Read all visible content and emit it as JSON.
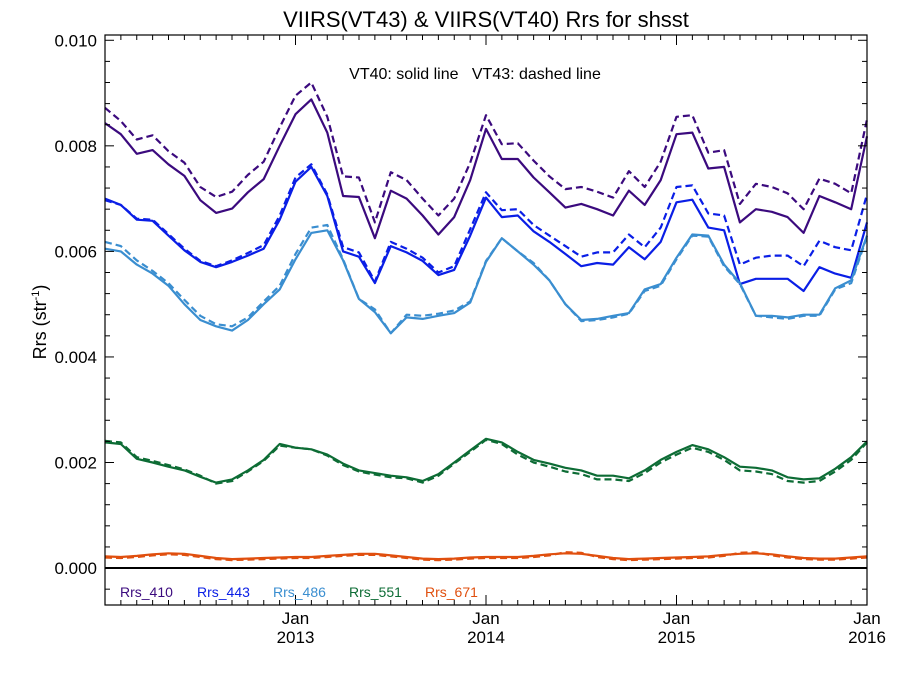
{
  "chart_data": {
    "type": "line",
    "title": "VIIRS(VT43) & VIIRS(VT40)  Rrs for shsst",
    "ylabel_main": "Rrs (str",
    "ylabel_sup": "-1",
    "ylabel_close": ")",
    "annotation": "VT40: solid line   VT43: dashed line",
    "xlim": [
      2012.0,
      2016.0
    ],
    "ylim": [
      -0.0007,
      0.0101
    ],
    "yticks": [
      {
        "value": 0.0,
        "label": "0.000"
      },
      {
        "value": 0.002,
        "label": "0.002"
      },
      {
        "value": 0.004,
        "label": "0.004"
      },
      {
        "value": 0.006,
        "label": "0.006"
      },
      {
        "value": 0.008,
        "label": "0.008"
      },
      {
        "value": 0.01,
        "label": "0.010"
      }
    ],
    "xticks": [
      {
        "value": 2013.0,
        "month": "Jan",
        "year": "2013"
      },
      {
        "value": 2014.0,
        "month": "Jan",
        "year": "2014"
      },
      {
        "value": 2015.0,
        "month": "Jan",
        "year": "2015"
      },
      {
        "value": 2016.0,
        "month": "Jan",
        "year": "2016"
      }
    ],
    "x": [
      2012.0,
      2012.083,
      2012.167,
      2012.25,
      2012.333,
      2012.417,
      2012.5,
      2012.583,
      2012.667,
      2012.75,
      2012.833,
      2012.917,
      2013.0,
      2013.083,
      2013.167,
      2013.25,
      2013.333,
      2013.417,
      2013.5,
      2013.583,
      2013.667,
      2013.75,
      2013.833,
      2013.917,
      2014.0,
      2014.083,
      2014.167,
      2014.25,
      2014.333,
      2014.417,
      2014.5,
      2014.583,
      2014.667,
      2014.75,
      2014.833,
      2014.917,
      2015.0,
      2015.083,
      2015.167,
      2015.25,
      2015.333,
      2015.417,
      2015.5,
      2015.583,
      2015.667,
      2015.75,
      2015.833,
      2015.917,
      2016.0
    ],
    "series": [
      {
        "name": "Rrs_410",
        "color": "#3b0a7e",
        "vt40": [
          0.00843,
          0.00822,
          0.00785,
          0.00792,
          0.00765,
          0.00743,
          0.00697,
          0.00673,
          0.00681,
          0.00712,
          0.00737,
          0.008,
          0.0086,
          0.00888,
          0.00825,
          0.00705,
          0.00703,
          0.00625,
          0.00715,
          0.007,
          0.00668,
          0.00632,
          0.00665,
          0.00735,
          0.00832,
          0.00775,
          0.00775,
          0.0074,
          0.00712,
          0.00683,
          0.0069,
          0.0068,
          0.00668,
          0.00715,
          0.00688,
          0.00735,
          0.00822,
          0.00825,
          0.00757,
          0.0076,
          0.00655,
          0.0068,
          0.00675,
          0.00665,
          0.00635,
          0.00705,
          0.00693,
          0.0068,
          0.00818
        ],
        "vt43": [
          0.00872,
          0.00847,
          0.00812,
          0.0082,
          0.0079,
          0.00768,
          0.00722,
          0.00703,
          0.00713,
          0.00745,
          0.0077,
          0.00835,
          0.00895,
          0.0092,
          0.00855,
          0.00742,
          0.0074,
          0.00655,
          0.0075,
          0.00735,
          0.007,
          0.00668,
          0.007,
          0.00768,
          0.00858,
          0.00803,
          0.00805,
          0.00772,
          0.00742,
          0.00718,
          0.00722,
          0.00713,
          0.00702,
          0.00752,
          0.00722,
          0.0077,
          0.00855,
          0.00858,
          0.00787,
          0.00792,
          0.0069,
          0.00728,
          0.00722,
          0.0071,
          0.0068,
          0.00738,
          0.00728,
          0.0071,
          0.0085
        ]
      },
      {
        "name": "Rrs_443",
        "color": "#0a1ee6",
        "vt40": [
          0.007,
          0.00688,
          0.0066,
          0.00658,
          0.0063,
          0.00602,
          0.0058,
          0.0057,
          0.0058,
          0.00592,
          0.00605,
          0.0066,
          0.00732,
          0.0076,
          0.00705,
          0.006,
          0.0059,
          0.0054,
          0.0061,
          0.00598,
          0.00582,
          0.00555,
          0.00565,
          0.0063,
          0.00702,
          0.00665,
          0.00668,
          0.00638,
          0.00618,
          0.00595,
          0.00572,
          0.00578,
          0.00575,
          0.00608,
          0.00585,
          0.00618,
          0.00693,
          0.00698,
          0.00645,
          0.0064,
          0.00538,
          0.00548,
          0.00548,
          0.00548,
          0.00525,
          0.0057,
          0.00558,
          0.0055,
          0.00655
        ],
        "vt43": [
          0.00697,
          0.00688,
          0.00662,
          0.0066,
          0.00633,
          0.00605,
          0.00582,
          0.00572,
          0.00583,
          0.00597,
          0.00612,
          0.00668,
          0.0074,
          0.00765,
          0.00708,
          0.00608,
          0.00598,
          0.00543,
          0.00618,
          0.00605,
          0.00588,
          0.0056,
          0.00572,
          0.00642,
          0.00712,
          0.00678,
          0.0068,
          0.0065,
          0.0063,
          0.0061,
          0.0059,
          0.00598,
          0.00598,
          0.00632,
          0.00608,
          0.00645,
          0.00722,
          0.00725,
          0.00672,
          0.00668,
          0.00575,
          0.00588,
          0.00592,
          0.00592,
          0.00572,
          0.0062,
          0.00608,
          0.00602,
          0.00708
        ]
      },
      {
        "name": "Rrs_486",
        "color": "#3a8ed0",
        "vt40": [
          0.00605,
          0.006,
          0.00575,
          0.00558,
          0.00535,
          0.005,
          0.0047,
          0.00458,
          0.0045,
          0.0047,
          0.005,
          0.00528,
          0.00585,
          0.00635,
          0.0064,
          0.00583,
          0.0051,
          0.00485,
          0.00445,
          0.00475,
          0.00472,
          0.00478,
          0.00483,
          0.00503,
          0.0058,
          0.00625,
          0.006,
          0.00575,
          0.00545,
          0.005,
          0.0047,
          0.00472,
          0.00478,
          0.00483,
          0.00528,
          0.00538,
          0.00588,
          0.00632,
          0.0063,
          0.00575,
          0.0054,
          0.00478,
          0.00478,
          0.00475,
          0.0048,
          0.0048,
          0.0053,
          0.00545,
          0.0063
        ],
        "vt43": [
          0.00618,
          0.0061,
          0.00583,
          0.00563,
          0.0054,
          0.00508,
          0.00478,
          0.00462,
          0.00458,
          0.00475,
          0.00505,
          0.00535,
          0.00595,
          0.00645,
          0.0065,
          0.00585,
          0.0051,
          0.0049,
          0.00445,
          0.0048,
          0.00478,
          0.00482,
          0.00488,
          0.00505,
          0.00582,
          0.00625,
          0.006,
          0.00578,
          0.00545,
          0.005,
          0.00468,
          0.0047,
          0.00475,
          0.00482,
          0.00525,
          0.00535,
          0.00585,
          0.0063,
          0.00628,
          0.00572,
          0.00538,
          0.00478,
          0.00475,
          0.00472,
          0.00478,
          0.00478,
          0.00528,
          0.0054,
          0.00628
        ]
      },
      {
        "name": "Rrs_551",
        "color": "#0d6c35",
        "vt40": [
          0.00238,
          0.00235,
          0.00207,
          0.002,
          0.00192,
          0.00185,
          0.00173,
          0.00162,
          0.00168,
          0.00185,
          0.00205,
          0.00235,
          0.00228,
          0.00225,
          0.00215,
          0.00198,
          0.00185,
          0.0018,
          0.00175,
          0.00172,
          0.00165,
          0.00178,
          0.002,
          0.00223,
          0.00245,
          0.00238,
          0.0022,
          0.00205,
          0.00198,
          0.0019,
          0.00185,
          0.00175,
          0.00175,
          0.0017,
          0.00185,
          0.00205,
          0.0022,
          0.00233,
          0.00225,
          0.0021,
          0.00192,
          0.0019,
          0.00185,
          0.00172,
          0.00168,
          0.0017,
          0.00188,
          0.0021,
          0.0024
        ],
        "vt43": [
          0.00241,
          0.00238,
          0.0021,
          0.00203,
          0.00195,
          0.00187,
          0.00175,
          0.0016,
          0.00165,
          0.00183,
          0.00203,
          0.00232,
          0.00228,
          0.00225,
          0.00213,
          0.00195,
          0.00183,
          0.00177,
          0.00172,
          0.0017,
          0.00162,
          0.00175,
          0.00198,
          0.0022,
          0.00243,
          0.00235,
          0.00215,
          0.002,
          0.00192,
          0.00183,
          0.00178,
          0.00168,
          0.00168,
          0.00165,
          0.0018,
          0.002,
          0.00215,
          0.00228,
          0.0022,
          0.00205,
          0.00185,
          0.00183,
          0.00178,
          0.00165,
          0.00162,
          0.00165,
          0.00183,
          0.00205,
          0.00238
        ]
      },
      {
        "name": "Rrs_671",
        "color": "#e04f0e",
        "vt40": [
          0.00022,
          0.00021,
          0.00023,
          0.00026,
          0.00028,
          0.00027,
          0.00023,
          0.00019,
          0.00017,
          0.00018,
          0.00019,
          0.0002,
          0.00021,
          0.00021,
          0.00023,
          0.00025,
          0.00027,
          0.00027,
          0.00024,
          0.00021,
          0.00018,
          0.00017,
          0.00018,
          0.0002,
          0.00021,
          0.00021,
          0.00021,
          0.00023,
          0.00026,
          0.00028,
          0.00027,
          0.00023,
          0.00019,
          0.00017,
          0.00018,
          0.00019,
          0.0002,
          0.00021,
          0.00022,
          0.00025,
          0.00027,
          0.00028,
          0.00026,
          0.00022,
          0.00019,
          0.00018,
          0.00018,
          0.0002,
          0.00022
        ],
        "vt43": [
          0.0002,
          0.00019,
          0.00021,
          0.00024,
          0.00026,
          0.00025,
          0.00021,
          0.00017,
          0.00015,
          0.00016,
          0.00017,
          0.00018,
          0.00019,
          0.00019,
          0.00021,
          0.00023,
          0.00025,
          0.00025,
          0.00022,
          0.00019,
          0.00016,
          0.00015,
          0.00016,
          0.00018,
          0.00019,
          0.00019,
          0.00019,
          0.00021,
          0.00024,
          0.0003,
          0.00029,
          0.00021,
          0.00017,
          0.00015,
          0.00016,
          0.00017,
          0.00018,
          0.00019,
          0.0002,
          0.00023,
          0.00029,
          0.0003,
          0.00024,
          0.0002,
          0.00017,
          0.00016,
          0.00016,
          0.00018,
          0.0002
        ]
      }
    ],
    "zero_line": true,
    "grid": false,
    "legend_position": "bottom-left"
  }
}
